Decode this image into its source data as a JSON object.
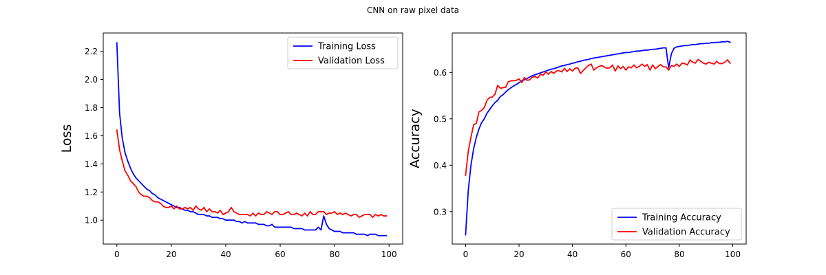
{
  "suptitle": "CNN on raw pixel data",
  "chart_data": [
    {
      "type": "line",
      "ylabel": "Loss",
      "xlim": [
        -5,
        105
      ],
      "ylim": [
        0.83,
        2.33
      ],
      "xticks": [
        0,
        20,
        40,
        60,
        80,
        100
      ],
      "xtick_labels": [
        "0",
        "20",
        "40",
        "60",
        "80",
        "100"
      ],
      "yticks": [
        1.0,
        1.2,
        1.4,
        1.6,
        1.8,
        2.0,
        2.2
      ],
      "ytick_labels": [
        "1.0",
        "1.2",
        "1.4",
        "1.6",
        "1.8",
        "2.0",
        "2.2"
      ],
      "legend": "top-right",
      "grid": false,
      "series": [
        {
          "name": "Training Loss",
          "color": "#0000ff",
          "x": [
            0,
            1,
            2,
            3,
            4,
            5,
            6,
            7,
            8,
            9,
            10,
            11,
            12,
            13,
            14,
            15,
            16,
            17,
            18,
            19,
            20,
            21,
            22,
            23,
            24,
            25,
            26,
            27,
            28,
            29,
            30,
            31,
            32,
            33,
            34,
            35,
            36,
            37,
            38,
            39,
            40,
            41,
            42,
            43,
            44,
            45,
            46,
            47,
            48,
            49,
            50,
            51,
            52,
            53,
            54,
            55,
            56,
            57,
            58,
            59,
            60,
            61,
            62,
            63,
            64,
            65,
            66,
            67,
            68,
            69,
            70,
            71,
            72,
            73,
            74,
            75,
            76,
            77,
            78,
            79,
            80,
            81,
            82,
            83,
            84,
            85,
            86,
            87,
            88,
            89,
            90,
            91,
            92,
            93,
            94,
            95,
            96,
            97,
            98,
            99
          ],
          "values": [
            2.26,
            1.76,
            1.58,
            1.48,
            1.42,
            1.37,
            1.33,
            1.3,
            1.28,
            1.26,
            1.24,
            1.22,
            1.21,
            1.19,
            1.18,
            1.16,
            1.15,
            1.14,
            1.13,
            1.12,
            1.11,
            1.1,
            1.09,
            1.09,
            1.08,
            1.07,
            1.07,
            1.06,
            1.06,
            1.05,
            1.04,
            1.04,
            1.04,
            1.03,
            1.03,
            1.02,
            1.02,
            1.02,
            1.01,
            1.01,
            1.0,
            1.0,
            1.0,
            1.0,
            0.99,
            0.99,
            0.98,
            0.99,
            0.98,
            0.98,
            0.98,
            0.98,
            0.97,
            0.97,
            0.97,
            0.96,
            0.96,
            0.97,
            0.95,
            0.95,
            0.95,
            0.95,
            0.95,
            0.95,
            0.95,
            0.94,
            0.94,
            0.94,
            0.94,
            0.93,
            0.93,
            0.93,
            0.93,
            0.93,
            0.95,
            0.93,
            1.03,
            0.97,
            0.94,
            0.93,
            0.92,
            0.92,
            0.92,
            0.91,
            0.91,
            0.91,
            0.91,
            0.91,
            0.9,
            0.9,
            0.9,
            0.9,
            0.89,
            0.9,
            0.9,
            0.9,
            0.89,
            0.89,
            0.89,
            0.89
          ]
        },
        {
          "name": "Validation Loss",
          "color": "#ff0000",
          "x": [
            0,
            1,
            2,
            3,
            4,
            5,
            6,
            7,
            8,
            9,
            10,
            11,
            12,
            13,
            14,
            15,
            16,
            17,
            18,
            19,
            20,
            21,
            22,
            23,
            24,
            25,
            26,
            27,
            28,
            29,
            30,
            31,
            32,
            33,
            34,
            35,
            36,
            37,
            38,
            39,
            40,
            41,
            42,
            43,
            44,
            45,
            46,
            47,
            48,
            49,
            50,
            51,
            52,
            53,
            54,
            55,
            56,
            57,
            58,
            59,
            60,
            61,
            62,
            63,
            64,
            65,
            66,
            67,
            68,
            69,
            70,
            71,
            72,
            73,
            74,
            75,
            76,
            77,
            78,
            79,
            80,
            81,
            82,
            83,
            84,
            85,
            86,
            87,
            88,
            89,
            90,
            91,
            92,
            93,
            94,
            95,
            96,
            97,
            98,
            99
          ],
          "values": [
            1.64,
            1.5,
            1.42,
            1.35,
            1.32,
            1.28,
            1.26,
            1.24,
            1.2,
            1.18,
            1.17,
            1.17,
            1.16,
            1.14,
            1.13,
            1.13,
            1.12,
            1.1,
            1.09,
            1.09,
            1.1,
            1.08,
            1.1,
            1.08,
            1.08,
            1.09,
            1.08,
            1.09,
            1.07,
            1.1,
            1.08,
            1.07,
            1.09,
            1.06,
            1.08,
            1.06,
            1.06,
            1.05,
            1.07,
            1.04,
            1.05,
            1.06,
            1.09,
            1.06,
            1.05,
            1.04,
            1.04,
            1.04,
            1.04,
            1.03,
            1.05,
            1.03,
            1.05,
            1.04,
            1.04,
            1.06,
            1.05,
            1.04,
            1.06,
            1.06,
            1.04,
            1.04,
            1.05,
            1.06,
            1.04,
            1.04,
            1.05,
            1.04,
            1.03,
            1.05,
            1.03,
            1.06,
            1.04,
            1.04,
            1.06,
            1.06,
            1.06,
            1.04,
            1.05,
            1.05,
            1.06,
            1.04,
            1.05,
            1.04,
            1.05,
            1.04,
            1.03,
            1.04,
            1.04,
            1.02,
            1.03,
            1.04,
            1.04,
            1.04,
            1.02,
            1.04,
            1.03,
            1.04,
            1.03,
            1.03
          ]
        }
      ]
    },
    {
      "type": "line",
      "ylabel": "Accuracy",
      "xlim": [
        -5,
        105
      ],
      "ylim": [
        0.23,
        0.685
      ],
      "xticks": [
        0,
        20,
        40,
        60,
        80,
        100
      ],
      "xtick_labels": [
        "0",
        "20",
        "40",
        "60",
        "80",
        "100"
      ],
      "yticks": [
        0.3,
        0.4,
        0.5,
        0.6
      ],
      "ytick_labels": [
        "0.3",
        "0.4",
        "0.5",
        "0.6"
      ],
      "legend": "bottom-right",
      "grid": false,
      "series": [
        {
          "name": "Training Accuracy",
          "color": "#0000ff",
          "x": [
            0,
            1,
            2,
            3,
            4,
            5,
            6,
            7,
            8,
            9,
            10,
            11,
            12,
            13,
            14,
            15,
            16,
            17,
            18,
            19,
            20,
            21,
            22,
            23,
            24,
            25,
            26,
            27,
            28,
            29,
            30,
            31,
            32,
            33,
            34,
            35,
            36,
            37,
            38,
            39,
            40,
            41,
            42,
            43,
            44,
            45,
            46,
            47,
            48,
            49,
            50,
            51,
            52,
            53,
            54,
            55,
            56,
            57,
            58,
            59,
            60,
            61,
            62,
            63,
            64,
            65,
            66,
            67,
            68,
            69,
            70,
            71,
            72,
            73,
            74,
            75,
            76,
            77,
            78,
            79,
            80,
            81,
            82,
            83,
            84,
            85,
            86,
            87,
            88,
            89,
            90,
            91,
            92,
            93,
            94,
            95,
            96,
            97,
            98,
            99
          ],
          "values": [
            0.25,
            0.345,
            0.4,
            0.435,
            0.46,
            0.478,
            0.492,
            0.5,
            0.512,
            0.52,
            0.528,
            0.535,
            0.54,
            0.548,
            0.552,
            0.558,
            0.563,
            0.567,
            0.571,
            0.574,
            0.578,
            0.582,
            0.584,
            0.587,
            0.59,
            0.593,
            0.595,
            0.597,
            0.599,
            0.601,
            0.603,
            0.605,
            0.607,
            0.608,
            0.61,
            0.612,
            0.614,
            0.615,
            0.617,
            0.618,
            0.62,
            0.621,
            0.623,
            0.624,
            0.626,
            0.627,
            0.628,
            0.63,
            0.631,
            0.632,
            0.633,
            0.634,
            0.635,
            0.636,
            0.637,
            0.638,
            0.639,
            0.64,
            0.641,
            0.642,
            0.643,
            0.643,
            0.644,
            0.645,
            0.646,
            0.646,
            0.647,
            0.648,
            0.648,
            0.649,
            0.65,
            0.65,
            0.651,
            0.652,
            0.653,
            0.653,
            0.61,
            0.64,
            0.652,
            0.655,
            0.656,
            0.657,
            0.658,
            0.658,
            0.659,
            0.66,
            0.66,
            0.661,
            0.662,
            0.662,
            0.663,
            0.663,
            0.664,
            0.664,
            0.665,
            0.665,
            0.666,
            0.666,
            0.667,
            0.665
          ]
        },
        {
          "name": "Validation Accuracy",
          "color": "#ff0000",
          "x": [
            0,
            1,
            2,
            3,
            4,
            5,
            6,
            7,
            8,
            9,
            10,
            11,
            12,
            13,
            14,
            15,
            16,
            17,
            18,
            19,
            20,
            21,
            22,
            23,
            24,
            25,
            26,
            27,
            28,
            29,
            30,
            31,
            32,
            33,
            34,
            35,
            36,
            37,
            38,
            39,
            40,
            41,
            42,
            43,
            44,
            45,
            46,
            47,
            48,
            49,
            50,
            51,
            52,
            53,
            54,
            55,
            56,
            57,
            58,
            59,
            60,
            61,
            62,
            63,
            64,
            65,
            66,
            67,
            68,
            69,
            70,
            71,
            72,
            73,
            74,
            75,
            76,
            77,
            78,
            79,
            80,
            81,
            82,
            83,
            84,
            85,
            86,
            87,
            88,
            89,
            90,
            91,
            92,
            93,
            94,
            95,
            96,
            97,
            98,
            99
          ],
          "values": [
            0.378,
            0.43,
            0.46,
            0.487,
            0.49,
            0.515,
            0.518,
            0.524,
            0.54,
            0.546,
            0.547,
            0.553,
            0.572,
            0.566,
            0.567,
            0.568,
            0.58,
            0.582,
            0.582,
            0.583,
            0.586,
            0.578,
            0.589,
            0.583,
            0.584,
            0.59,
            0.591,
            0.588,
            0.596,
            0.594,
            0.601,
            0.596,
            0.602,
            0.598,
            0.603,
            0.604,
            0.601,
            0.609,
            0.602,
            0.608,
            0.603,
            0.609,
            0.61,
            0.598,
            0.604,
            0.61,
            0.615,
            0.618,
            0.605,
            0.61,
            0.613,
            0.615,
            0.611,
            0.609,
            0.61,
            0.616,
            0.603,
            0.614,
            0.608,
            0.613,
            0.605,
            0.612,
            0.61,
            0.616,
            0.61,
            0.613,
            0.618,
            0.613,
            0.617,
            0.605,
            0.616,
            0.608,
            0.613,
            0.617,
            0.612,
            0.612,
            0.605,
            0.615,
            0.613,
            0.618,
            0.613,
            0.62,
            0.619,
            0.616,
            0.627,
            0.622,
            0.62,
            0.628,
            0.624,
            0.62,
            0.618,
            0.622,
            0.62,
            0.618,
            0.624,
            0.619,
            0.619,
            0.622,
            0.627,
            0.62
          ]
        }
      ]
    }
  ]
}
